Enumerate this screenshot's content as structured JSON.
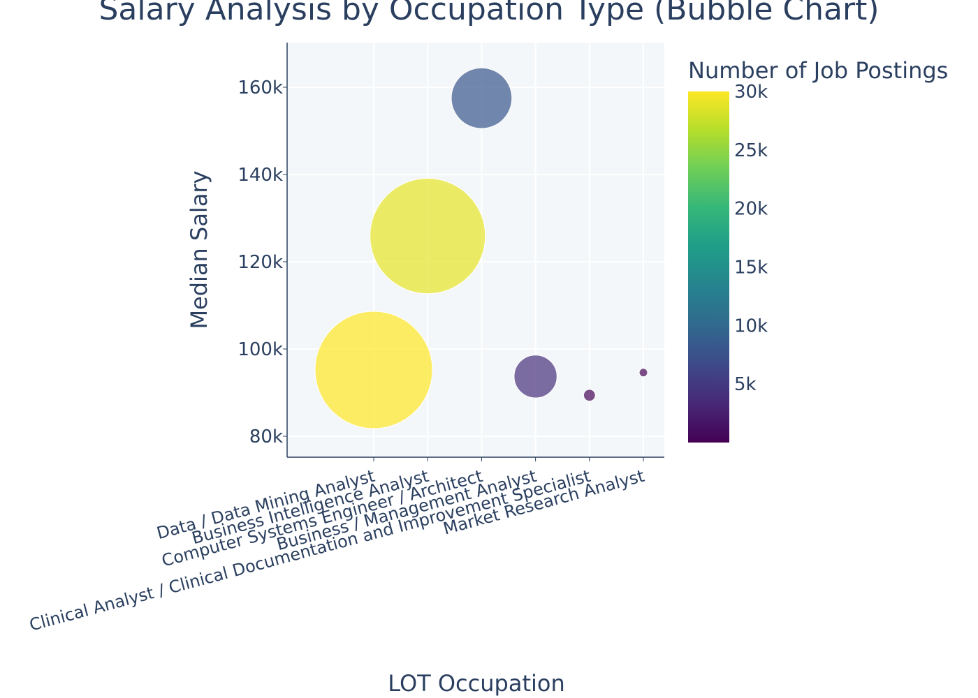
{
  "chart_data": {
    "type": "scatter",
    "title": "Salary Analysis by Occupation Type (Bubble Chart)",
    "xlabel": "LOT Occupation",
    "ylabel": "Median Salary",
    "ylim": [
      75000,
      170000
    ],
    "y_ticks": [
      {
        "value": 80000,
        "label": "80k"
      },
      {
        "value": 100000,
        "label": "100k"
      },
      {
        "value": 120000,
        "label": "120k"
      },
      {
        "value": 140000,
        "label": "140k"
      },
      {
        "value": 160000,
        "label": "160k"
      }
    ],
    "categories": [
      "Data / Data Mining Analyst",
      "Business Intelligence Analyst",
      "Computer Systems Engineer / Architect",
      "Business / Management Analyst",
      "Clinical Analyst / Clinical Documentation and Improvement Specialist",
      "Market Research Analyst"
    ],
    "points": [
      {
        "x": "Data / Data Mining Analyst",
        "y": 95200,
        "postings": 30000
      },
      {
        "x": "Business Intelligence Analyst",
        "y": 125900,
        "postings": 29000
      },
      {
        "x": "Computer Systems Engineer / Architect",
        "y": 157500,
        "postings": 8000
      },
      {
        "x": "Business / Management Analyst",
        "y": 93700,
        "postings": 4000
      },
      {
        "x": "Clinical Analyst / Clinical Documentation and Improvement Specialist",
        "y": 89400,
        "postings": 300
      },
      {
        "x": "Market Research Analyst",
        "y": 94600,
        "postings": 150
      }
    ],
    "colorbar": {
      "title": "Number of Job Postings",
      "colorscale": "Viridis",
      "range": [
        0,
        30000
      ],
      "ticks": [
        {
          "value": 5000,
          "label": "5k"
        },
        {
          "value": 10000,
          "label": "10k"
        },
        {
          "value": 15000,
          "label": "15k"
        },
        {
          "value": 20000,
          "label": "20k"
        },
        {
          "value": 25000,
          "label": "25k"
        },
        {
          "value": 30000,
          "label": "30k"
        }
      ]
    },
    "grid": true,
    "legend": "colorbar-right"
  }
}
